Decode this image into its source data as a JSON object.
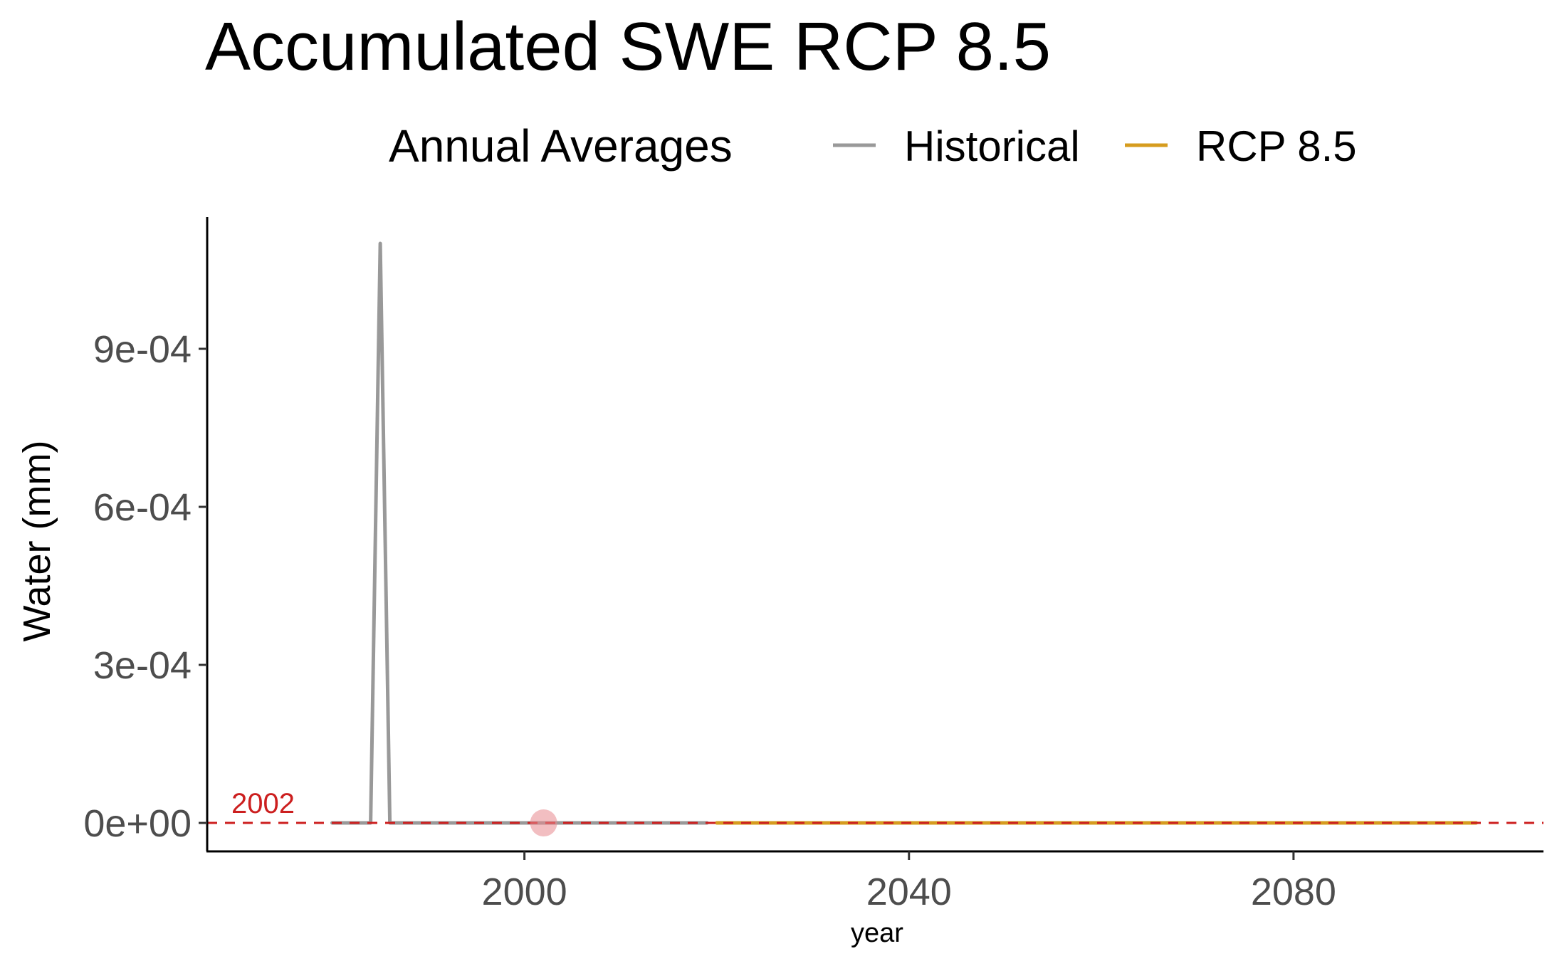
{
  "chart_data": {
    "type": "line",
    "title": "Accumulated SWE RCP 8.5",
    "legend": {
      "title": "Annual Averages",
      "position": "top",
      "entries": [
        {
          "label": "Historical",
          "color": "#999999"
        },
        {
          "label": "RCP 8.5",
          "color": "#D69C1E"
        }
      ]
    },
    "xlabel": "year",
    "ylabel": "Water (mm)",
    "xlim": [
      1967,
      2106
    ],
    "ylim": [
      -5.4e-05,
      0.00115
    ],
    "x_ticks": [
      {
        "value": 2000,
        "label": "2000"
      },
      {
        "value": 2040,
        "label": "2040"
      },
      {
        "value": 2080,
        "label": "2080"
      }
    ],
    "y_ticks": [
      {
        "value": 0,
        "label": "0e+00"
      },
      {
        "value": 0.0003,
        "label": "3e-04"
      },
      {
        "value": 0.0006,
        "label": "6e-04"
      },
      {
        "value": 0.0009,
        "label": "9e-04"
      }
    ],
    "grid": false,
    "series": [
      {
        "name": "Historical",
        "color": "#999999",
        "x": [
          1980,
          1981,
          1982,
          1983,
          1984,
          1985,
          1986,
          1987,
          1988,
          1989,
          1990,
          1991,
          1992,
          1993,
          1994,
          1995,
          1996,
          1997,
          1998,
          1999,
          2000,
          2001,
          2002,
          2003,
          2004,
          2005,
          2006,
          2007,
          2008,
          2009,
          2010,
          2011,
          2012,
          2013,
          2014,
          2015,
          2016,
          2017,
          2018,
          2019
        ],
        "y": [
          0,
          0,
          0,
          0,
          0,
          0.0011,
          0,
          0,
          0,
          0,
          0,
          0,
          0,
          0,
          0,
          0,
          0,
          0,
          0,
          0,
          0,
          0,
          0,
          0,
          0,
          0,
          0,
          0,
          0,
          0,
          0,
          0,
          0,
          0,
          0,
          0,
          0,
          0,
          0,
          0
        ]
      },
      {
        "name": "RCP 8.5",
        "color": "#D69C1E",
        "x": [
          2020,
          2099
        ],
        "y": [
          0,
          0
        ]
      }
    ],
    "reference_line": {
      "y": 0,
      "color": "#CC1F1F",
      "style": "dashed"
    },
    "highlight_point": {
      "x": 2002,
      "y": 0,
      "color": "#E8888E"
    },
    "annotation": {
      "text": "2002",
      "x": 2002,
      "y": 0,
      "color": "#CC1F1F"
    }
  }
}
